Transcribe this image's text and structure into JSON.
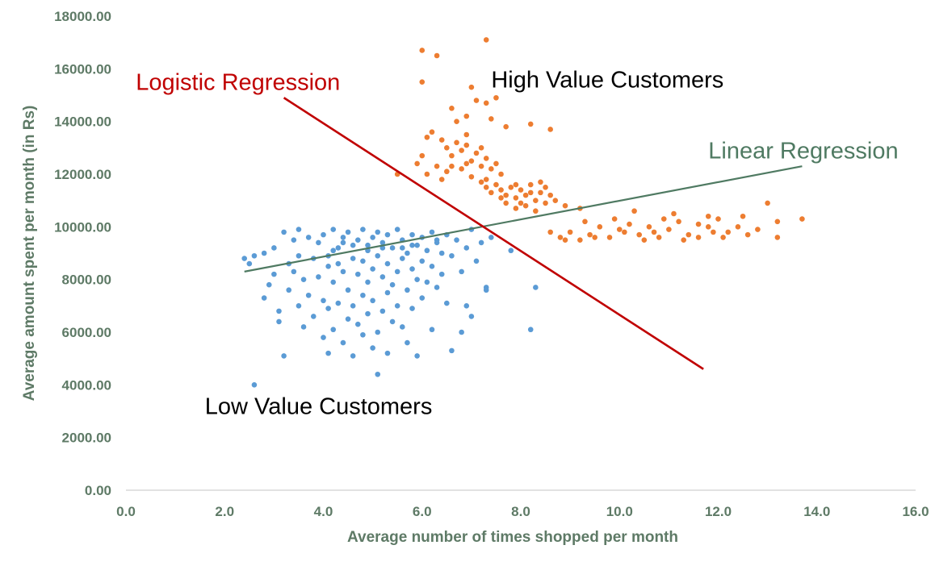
{
  "chart_data": {
    "type": "scatter",
    "title": "",
    "xlabel": "Average number of times shopped per month",
    "ylabel": "Average amount spent per month (in Rs)",
    "xlim": [
      0,
      16
    ],
    "ylim": [
      0,
      18000
    ],
    "x_ticks": [
      0,
      2,
      4,
      6,
      8,
      10,
      12,
      14,
      16
    ],
    "y_ticks": [
      0,
      2000,
      4000,
      6000,
      8000,
      10000,
      12000,
      14000,
      16000,
      18000
    ],
    "x_tick_labels": [
      "0.0",
      "2.0",
      "4.0",
      "6.0",
      "8.0",
      "10.0",
      "12.0",
      "14.0",
      "16.0"
    ],
    "y_tick_labels": [
      "0.00",
      "2000.00",
      "4000.00",
      "6000.00",
      "8000.00",
      "10000.00",
      "12000.00",
      "14000.00",
      "16000.00",
      "18000.00"
    ],
    "grid": false,
    "legend": "none",
    "series": [
      {
        "color": "#5b9bd5",
        "points": [
          [
            2.4,
            8800
          ],
          [
            2.5,
            8600
          ],
          [
            2.6,
            8900
          ],
          [
            2.6,
            4000
          ],
          [
            2.8,
            9000
          ],
          [
            2.8,
            7300
          ],
          [
            2.9,
            7800
          ],
          [
            3.0,
            9200
          ],
          [
            3.0,
            8200
          ],
          [
            3.1,
            6800
          ],
          [
            3.1,
            6400
          ],
          [
            3.2,
            9800
          ],
          [
            3.2,
            5100
          ],
          [
            3.3,
            8600
          ],
          [
            3.3,
            7600
          ],
          [
            3.4,
            9500
          ],
          [
            3.4,
            8300
          ],
          [
            3.5,
            9900
          ],
          [
            3.5,
            7000
          ],
          [
            3.6,
            8000
          ],
          [
            3.6,
            6200
          ],
          [
            3.7,
            9600
          ],
          [
            3.7,
            7400
          ],
          [
            3.8,
            8800
          ],
          [
            3.8,
            6600
          ],
          [
            3.9,
            9400
          ],
          [
            3.9,
            8100
          ],
          [
            4.0,
            9700
          ],
          [
            4.0,
            7200
          ],
          [
            4.0,
            5800
          ],
          [
            4.1,
            8500
          ],
          [
            4.1,
            6900
          ],
          [
            4.1,
            5200
          ],
          [
            4.2,
            9900
          ],
          [
            4.2,
            7900
          ],
          [
            4.2,
            6100
          ],
          [
            4.3,
            9200
          ],
          [
            4.3,
            8600
          ],
          [
            4.3,
            7100
          ],
          [
            4.4,
            9600
          ],
          [
            4.4,
            8300
          ],
          [
            4.4,
            5600
          ],
          [
            4.5,
            9800
          ],
          [
            4.5,
            7600
          ],
          [
            4.5,
            6500
          ],
          [
            4.6,
            9300
          ],
          [
            4.6,
            8800
          ],
          [
            4.6,
            7000
          ],
          [
            4.6,
            5100
          ],
          [
            4.7,
            9500
          ],
          [
            4.7,
            8200
          ],
          [
            4.7,
            6300
          ],
          [
            4.8,
            9900
          ],
          [
            4.8,
            8700
          ],
          [
            4.8,
            7400
          ],
          [
            4.8,
            5900
          ],
          [
            4.9,
            9100
          ],
          [
            4.9,
            7900
          ],
          [
            4.9,
            6700
          ],
          [
            5.0,
            9600
          ],
          [
            5.0,
            8400
          ],
          [
            5.0,
            7200
          ],
          [
            5.0,
            5400
          ],
          [
            5.1,
            9800
          ],
          [
            5.1,
            8900
          ],
          [
            5.1,
            6000
          ],
          [
            5.1,
            4400
          ],
          [
            5.2,
            9400
          ],
          [
            5.2,
            8100
          ],
          [
            5.2,
            6800
          ],
          [
            5.3,
            9700
          ],
          [
            5.3,
            8600
          ],
          [
            5.3,
            7500
          ],
          [
            5.3,
            5200
          ],
          [
            5.4,
            9200
          ],
          [
            5.4,
            7800
          ],
          [
            5.4,
            6400
          ],
          [
            5.5,
            9900
          ],
          [
            5.5,
            8300
          ],
          [
            5.5,
            7000
          ],
          [
            5.6,
            9500
          ],
          [
            5.6,
            8800
          ],
          [
            5.6,
            6200
          ],
          [
            5.7,
            9000
          ],
          [
            5.7,
            7600
          ],
          [
            5.7,
            5600
          ],
          [
            5.8,
            9700
          ],
          [
            5.8,
            8400
          ],
          [
            5.8,
            6900
          ],
          [
            5.9,
            9300
          ],
          [
            5.9,
            8000
          ],
          [
            5.9,
            5100
          ],
          [
            6.0,
            9600
          ],
          [
            6.0,
            8700
          ],
          [
            6.0,
            7300
          ],
          [
            6.1,
            9100
          ],
          [
            6.1,
            7900
          ],
          [
            6.2,
            9800
          ],
          [
            6.2,
            8500
          ],
          [
            6.2,
            6100
          ],
          [
            6.3,
            9400
          ],
          [
            6.3,
            7700
          ],
          [
            6.4,
            9000
          ],
          [
            6.4,
            8200
          ],
          [
            6.5,
            9700
          ],
          [
            6.5,
            7100
          ],
          [
            6.6,
            8900
          ],
          [
            6.6,
            5300
          ],
          [
            6.7,
            9500
          ],
          [
            6.8,
            8300
          ],
          [
            6.8,
            6000
          ],
          [
            6.9,
            9200
          ],
          [
            6.9,
            7000
          ],
          [
            7.0,
            9900
          ],
          [
            7.0,
            6600
          ],
          [
            7.1,
            8700
          ],
          [
            7.2,
            9400
          ],
          [
            7.3,
            7700
          ],
          [
            7.3,
            7600
          ],
          [
            7.4,
            9600
          ],
          [
            7.8,
            9100
          ],
          [
            8.2,
            6100
          ],
          [
            8.3,
            7700
          ],
          [
            3.5,
            8900
          ],
          [
            4.2,
            9100
          ],
          [
            4.9,
            9300
          ],
          [
            5.6,
            9200
          ],
          [
            6.3,
            9500
          ],
          [
            4.4,
            9400
          ],
          [
            5.2,
            9200
          ],
          [
            5.8,
            9300
          ],
          [
            4.1,
            8900
          ]
        ]
      },
      {
        "color": "#ed7d31",
        "points": [
          [
            6.0,
            16700
          ],
          [
            6.3,
            16500
          ],
          [
            7.3,
            17100
          ],
          [
            6.0,
            15500
          ],
          [
            7.0,
            15300
          ],
          [
            6.6,
            14500
          ],
          [
            7.1,
            14800
          ],
          [
            7.3,
            14700
          ],
          [
            7.5,
            14900
          ],
          [
            6.7,
            14000
          ],
          [
            6.9,
            14200
          ],
          [
            7.4,
            14100
          ],
          [
            6.2,
            13600
          ],
          [
            6.4,
            13300
          ],
          [
            6.5,
            13000
          ],
          [
            6.6,
            12700
          ],
          [
            6.7,
            13200
          ],
          [
            6.8,
            12900
          ],
          [
            6.9,
            13100
          ],
          [
            7.0,
            12500
          ],
          [
            7.1,
            12800
          ],
          [
            7.2,
            12300
          ],
          [
            7.3,
            12600
          ],
          [
            7.4,
            12200
          ],
          [
            7.5,
            12400
          ],
          [
            7.6,
            12000
          ],
          [
            5.9,
            12400
          ],
          [
            6.0,
            12700
          ],
          [
            6.1,
            12000
          ],
          [
            6.3,
            12300
          ],
          [
            6.4,
            11800
          ],
          [
            6.5,
            12100
          ],
          [
            6.8,
            12200
          ],
          [
            7.0,
            11900
          ],
          [
            7.2,
            11700
          ],
          [
            7.3,
            11500
          ],
          [
            7.4,
            11300
          ],
          [
            7.5,
            11600
          ],
          [
            7.6,
            11400
          ],
          [
            7.7,
            11200
          ],
          [
            7.8,
            11500
          ],
          [
            7.9,
            11100
          ],
          [
            8.0,
            11400
          ],
          [
            8.1,
            11200
          ],
          [
            8.2,
            11600
          ],
          [
            8.3,
            11000
          ],
          [
            8.4,
            11300
          ],
          [
            8.5,
            11500
          ],
          [
            8.6,
            11200
          ],
          [
            8.7,
            11000
          ],
          [
            7.7,
            10900
          ],
          [
            7.9,
            10700
          ],
          [
            8.1,
            10800
          ],
          [
            8.3,
            10600
          ],
          [
            8.5,
            10900
          ],
          [
            5.5,
            12000
          ],
          [
            6.1,
            13400
          ],
          [
            7.7,
            13800
          ],
          [
            8.2,
            13900
          ],
          [
            8.6,
            13700
          ],
          [
            7.3,
            11800
          ],
          [
            7.6,
            11100
          ],
          [
            7.9,
            11600
          ],
          [
            8.2,
            11300
          ],
          [
            8.4,
            11700
          ],
          [
            8.0,
            10900
          ],
          [
            6.9,
            12400
          ],
          [
            7.2,
            13000
          ],
          [
            6.6,
            12300
          ],
          [
            6.9,
            13500
          ],
          [
            8.9,
            10800
          ],
          [
            9.2,
            10700
          ],
          [
            8.6,
            9800
          ],
          [
            8.8,
            9600
          ],
          [
            9.0,
            9800
          ],
          [
            9.2,
            9500
          ],
          [
            9.4,
            9700
          ],
          [
            9.6,
            10000
          ],
          [
            9.8,
            9600
          ],
          [
            10.0,
            9900
          ],
          [
            10.2,
            10100
          ],
          [
            10.4,
            9700
          ],
          [
            10.6,
            10000
          ],
          [
            10.8,
            9600
          ],
          [
            11.0,
            9900
          ],
          [
            11.2,
            10200
          ],
          [
            11.4,
            9700
          ],
          [
            11.6,
            9600
          ],
          [
            11.8,
            10000
          ],
          [
            12.0,
            10300
          ],
          [
            12.2,
            9800
          ],
          [
            12.4,
            10000
          ],
          [
            12.6,
            9700
          ],
          [
            10.3,
            10600
          ],
          [
            11.1,
            10500
          ],
          [
            11.8,
            10400
          ],
          [
            12.5,
            10400
          ],
          [
            13.0,
            10900
          ],
          [
            13.2,
            10200
          ],
          [
            13.2,
            9600
          ],
          [
            13.7,
            10300
          ],
          [
            12.8,
            9900
          ],
          [
            9.9,
            10300
          ],
          [
            10.5,
            9500
          ],
          [
            11.3,
            9500
          ],
          [
            10.1,
            9800
          ],
          [
            10.9,
            10300
          ],
          [
            11.6,
            10100
          ],
          [
            8.9,
            9500
          ],
          [
            9.5,
            9600
          ],
          [
            12.1,
            9600
          ],
          [
            11.9,
            9800
          ],
          [
            10.7,
            9800
          ],
          [
            9.3,
            10200
          ]
        ]
      }
    ],
    "lines": [
      {
        "label": "Linear Regression",
        "color": "#4f7a62",
        "from": [
          2.4,
          8300
        ],
        "to": [
          13.7,
          12300
        ]
      },
      {
        "label": "Logistic Regression",
        "color": "#c00000",
        "from": [
          3.2,
          14900
        ],
        "to": [
          11.7,
          4600
        ]
      }
    ],
    "annotations": [
      {
        "text": "Logistic Regression",
        "x": 0.2,
        "y": 15500,
        "color": "#c00000"
      },
      {
        "text": "High Value Customers",
        "x": 7.4,
        "y": 15600,
        "color": "#000000"
      },
      {
        "text": "Linear Regression",
        "x": 11.8,
        "y": 12900,
        "color": "#4f7a62"
      },
      {
        "text": "Low Value Customers",
        "x": 1.6,
        "y": 3200,
        "color": "#000000"
      }
    ]
  }
}
